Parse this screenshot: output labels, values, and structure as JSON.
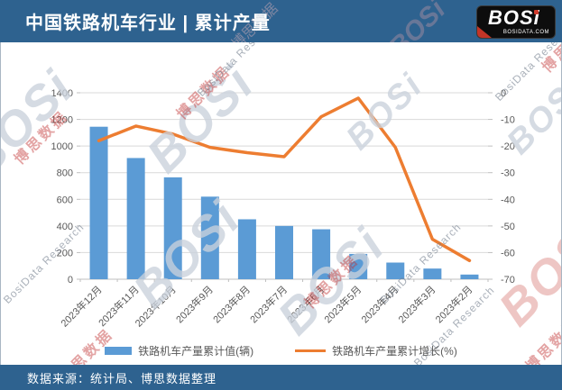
{
  "header": {
    "title": "中国铁路机车行业 | 累计产量"
  },
  "logo": {
    "wordmark": "BOSi",
    "domain": "BOSIDATA.COM"
  },
  "watermarks": {
    "cn": "博思数据",
    "en": "BosiData Research",
    "logo": "BOSi"
  },
  "footer": {
    "source": "数据来源：统计局、博思数据整理"
  },
  "colors": {
    "header_bg": "#2E628F",
    "footer_bg": "#2E628F",
    "bar": "#5B9BD5",
    "line": "#ED7D31",
    "grid": "#D9D9D9",
    "axis_line": "#BFBFBF",
    "axis_text": "#595959"
  },
  "chart_data": {
    "type": "bar",
    "subtype": "combo-bar-line-dual-axis",
    "categories": [
      "2023年12月",
      "2023年11月",
      "2023年10月",
      "2023年9月",
      "2023年8月",
      "2023年7月",
      "2023年6月",
      "2023年5月",
      "2023年4月",
      "2023年3月",
      "2023年2月"
    ],
    "series": [
      {
        "name": "铁路机车产量累计值(辆)",
        "type": "bar",
        "axis": "left",
        "color": "#5B9BD5",
        "values": [
          1145,
          910,
          765,
          620,
          450,
          400,
          375,
          190,
          125,
          80,
          35
        ]
      },
      {
        "name": "铁路机车产量累计增长(%)",
        "type": "line",
        "axis": "right",
        "color": "#ED7D31",
        "values": [
          -18,
          -12.5,
          -15.5,
          -20.5,
          -22.5,
          -24,
          -9,
          -2,
          -20.5,
          -55,
          -63
        ]
      }
    ],
    "left_axis": {
      "min": 0,
      "max": 1400,
      "step": 200,
      "ticks": [
        0,
        200,
        400,
        600,
        800,
        1000,
        1200,
        1400
      ]
    },
    "right_axis": {
      "min": -70,
      "max": 0,
      "step": 10,
      "ticks": [
        0,
        -10,
        -20,
        -30,
        -40,
        -50,
        -60,
        -70
      ]
    },
    "grid": true,
    "legend_position": "bottom"
  }
}
